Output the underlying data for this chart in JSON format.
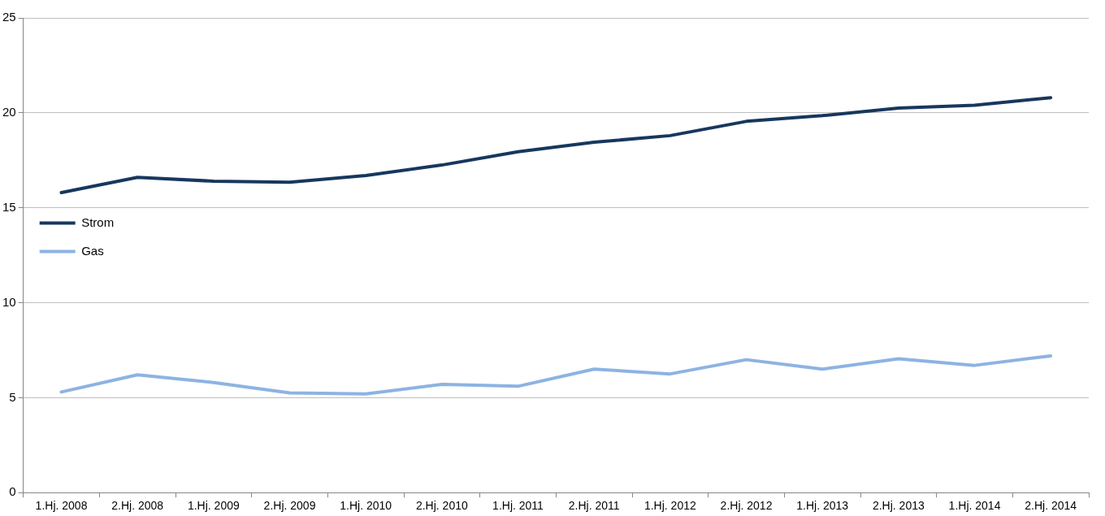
{
  "chart_data": {
    "type": "line",
    "categories": [
      "1.Hj. 2008",
      "2.Hj. 2008",
      "1.Hj. 2009",
      "2.Hj. 2009",
      "1.Hj. 2010",
      "2.Hj. 2010",
      "1.Hj. 2011",
      "2.Hj. 2011",
      "1.Hj. 2012",
      "2.Hj. 2012",
      "1.Hj. 2013",
      "2.Hj. 2013",
      "1.Hj. 2014",
      "2.Hj. 2014"
    ],
    "series": [
      {
        "name": "Strom",
        "color": "#17375e",
        "values": [
          15.8,
          16.6,
          16.4,
          16.35,
          16.7,
          17.25,
          17.95,
          18.45,
          18.8,
          19.55,
          19.85,
          20.25,
          20.4,
          20.8
        ]
      },
      {
        "name": "Gas",
        "color": "#8db3e2",
        "values": [
          5.3,
          6.2,
          5.8,
          5.25,
          5.2,
          5.7,
          5.6,
          6.5,
          6.25,
          7.0,
          6.5,
          7.05,
          6.7,
          7.2
        ]
      }
    ],
    "ylim": [
      0,
      25
    ],
    "yticks": [
      0,
      5,
      10,
      15,
      20,
      25
    ],
    "grid": "y",
    "legend": "top",
    "marker": "none",
    "line_style": "solid"
  }
}
